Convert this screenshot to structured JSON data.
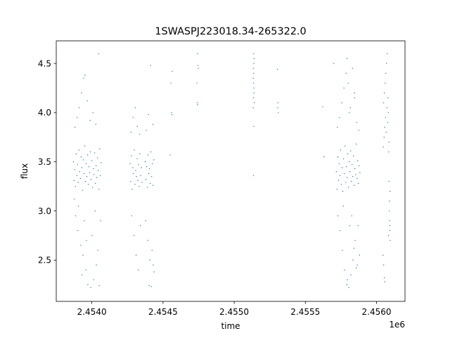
{
  "chart_data": {
    "type": "scatter",
    "title": "1SWASPJ223018.34-265322.0",
    "xlabel": "time",
    "ylabel": "flux",
    "x_offset_label": "1e6",
    "x_scale_factor": 1000000,
    "xlim": [
      2453750,
      2456200
    ],
    "ylim": [
      2.08,
      4.73
    ],
    "xticks": [
      2454000,
      2454500,
      2455000,
      2455500,
      2456000
    ],
    "xtick_labels": [
      "2.4540",
      "2.4545",
      "2.4550",
      "2.4555",
      "2.4560"
    ],
    "yticks": [
      2.5,
      3.0,
      3.5,
      4.0,
      4.5
    ],
    "ytick_labels": [
      "2.5",
      "3.0",
      "3.5",
      "4.0",
      "4.5"
    ],
    "grid": false,
    "marker_color": "#1f77b4",
    "series": [
      {
        "points": [
          [
            2453871,
            3.5
          ],
          [
            2453875,
            3.31
          ],
          [
            2453880,
            3.42
          ],
          [
            2453885,
            3.25
          ],
          [
            2453890,
            3.58
          ],
          [
            2453895,
            3.36
          ],
          [
            2453900,
            3.47
          ],
          [
            2453905,
            3.29
          ],
          [
            2453910,
            3.62
          ],
          [
            2453915,
            3.4
          ],
          [
            2453920,
            3.33
          ],
          [
            2453925,
            3.55
          ],
          [
            2453930,
            3.44
          ],
          [
            2453935,
            3.21
          ],
          [
            2453940,
            3.52
          ],
          [
            2453945,
            3.38
          ],
          [
            2453950,
            3.66
          ],
          [
            2453955,
            3.3
          ],
          [
            2453960,
            3.48
          ],
          [
            2453965,
            3.35
          ],
          [
            2453970,
            3.57
          ],
          [
            2453975,
            3.27
          ],
          [
            2453980,
            3.45
          ],
          [
            2453985,
            3.39
          ],
          [
            2453990,
            3.6
          ],
          [
            2453995,
            3.32
          ],
          [
            2454000,
            3.51
          ],
          [
            2454005,
            3.24
          ],
          [
            2454010,
            3.43
          ],
          [
            2454015,
            3.37
          ],
          [
            2454020,
            3.59
          ],
          [
            2454025,
            3.28
          ],
          [
            2454030,
            3.46
          ],
          [
            2454035,
            3.34
          ],
          [
            2454040,
            3.54
          ],
          [
            2454045,
            3.41
          ],
          [
            2454050,
            3.22
          ],
          [
            2454055,
            3.63
          ],
          [
            2454060,
            3.36
          ],
          [
            2454065,
            3.49
          ],
          [
            2453882,
            3.85
          ],
          [
            2453897,
            3.95
          ],
          [
            2453912,
            4.05
          ],
          [
            2453928,
            4.2
          ],
          [
            2453943,
            4.35
          ],
          [
            2453952,
            4.38
          ],
          [
            2453968,
            4.12
          ],
          [
            2453988,
            3.92
          ],
          [
            2454008,
            4.0
          ],
          [
            2454028,
            3.88
          ],
          [
            2454048,
            4.6
          ],
          [
            2453886,
            2.95
          ],
          [
            2453902,
            2.8
          ],
          [
            2453922,
            2.65
          ],
          [
            2453938,
            2.55
          ],
          [
            2453958,
            2.4
          ],
          [
            2453972,
            2.25
          ],
          [
            2453992,
            2.22
          ],
          [
            2454012,
            2.3
          ],
          [
            2454032,
            2.45
          ],
          [
            2454042,
            2.6
          ],
          [
            2453906,
            3.05
          ],
          [
            2453962,
            2.7
          ],
          [
            2454022,
            3.0
          ],
          [
            2454062,
            2.9
          ],
          [
            2453930,
            2.35
          ],
          [
            2454052,
            2.24
          ],
          [
            2453947,
            2.9
          ],
          [
            2454002,
            2.75
          ],
          [
            2453876,
            3.12
          ],
          [
            2454268,
            3.48
          ],
          [
            2454273,
            3.3
          ],
          [
            2454278,
            3.56
          ],
          [
            2454283,
            3.22
          ],
          [
            2454288,
            3.44
          ],
          [
            2454293,
            3.38
          ],
          [
            2454298,
            3.62
          ],
          [
            2454303,
            3.27
          ],
          [
            2454308,
            3.41
          ],
          [
            2454313,
            3.35
          ],
          [
            2454318,
            3.53
          ],
          [
            2454323,
            3.31
          ],
          [
            2454328,
            3.47
          ],
          [
            2454333,
            3.25
          ],
          [
            2454338,
            3.58
          ],
          [
            2454343,
            3.36
          ],
          [
            2454348,
            3.44
          ],
          [
            2454353,
            3.29
          ],
          [
            2454375,
            3.5
          ],
          [
            2454380,
            3.32
          ],
          [
            2454385,
            3.45
          ],
          [
            2454390,
            3.24
          ],
          [
            2454395,
            3.57
          ],
          [
            2454400,
            3.38
          ],
          [
            2454405,
            3.43
          ],
          [
            2454410,
            3.28
          ],
          [
            2454415,
            3.6
          ],
          [
            2454420,
            3.35
          ],
          [
            2454425,
            3.48
          ],
          [
            2454430,
            3.26
          ],
          [
            2454435,
            3.52
          ],
          [
            2454275,
            3.8
          ],
          [
            2454290,
            3.95
          ],
          [
            2454305,
            4.05
          ],
          [
            2454320,
            3.86
          ],
          [
            2454336,
            3.78
          ],
          [
            2454383,
            3.82
          ],
          [
            2454398,
            3.98
          ],
          [
            2454413,
            4.48
          ],
          [
            2454428,
            3.88
          ],
          [
            2454280,
            2.95
          ],
          [
            2454296,
            2.75
          ],
          [
            2454311,
            2.55
          ],
          [
            2454326,
            2.4
          ],
          [
            2454341,
            2.85
          ],
          [
            2454378,
            2.9
          ],
          [
            2454393,
            2.7
          ],
          [
            2454408,
            2.5
          ],
          [
            2454418,
            2.23
          ],
          [
            2454431,
            2.45
          ],
          [
            2454403,
            2.24
          ],
          [
            2454423,
            2.6
          ],
          [
            2454437,
            2.38
          ],
          [
            2454550,
            3.57
          ],
          [
            2454560,
            4.0
          ],
          [
            2454563,
            3.98
          ],
          [
            2454555,
            4.3
          ],
          [
            2454565,
            4.42
          ],
          [
            2454742,
            4.6
          ],
          [
            2454745,
            4.48
          ],
          [
            2454748,
            4.45
          ],
          [
            2454740,
            4.1
          ],
          [
            2454743,
            4.08
          ],
          [
            2454738,
            4.3
          ],
          [
            2455134,
            4.05
          ],
          [
            2455135,
            4.15
          ],
          [
            2455136,
            4.3
          ],
          [
            2455137,
            4.4
          ],
          [
            2455138,
            4.5
          ],
          [
            2455139,
            4.25
          ],
          [
            2455140,
            4.55
          ],
          [
            2455134,
            4.35
          ],
          [
            2455137,
            4.6
          ],
          [
            2455138,
            3.86
          ],
          [
            2455136,
            3.36
          ],
          [
            2455135,
            4.45
          ],
          [
            2455139,
            4.2
          ],
          [
            2455141,
            4.1
          ],
          [
            2455304,
            4.44
          ],
          [
            2455308,
            4.1
          ],
          [
            2455310,
            4.0
          ],
          [
            2455306,
            4.05
          ],
          [
            2455700,
            4.5
          ],
          [
            2455630,
            3.55
          ],
          [
            2455622,
            4.06
          ],
          [
            2455718,
            3.4
          ],
          [
            2455723,
            3.22
          ],
          [
            2455728,
            3.55
          ],
          [
            2455733,
            3.31
          ],
          [
            2455738,
            3.48
          ],
          [
            2455743,
            3.36
          ],
          [
            2455748,
            3.62
          ],
          [
            2455753,
            3.27
          ],
          [
            2455758,
            3.44
          ],
          [
            2455763,
            3.2
          ],
          [
            2455768,
            3.53
          ],
          [
            2455773,
            3.38
          ],
          [
            2455778,
            3.66
          ],
          [
            2455783,
            3.29
          ],
          [
            2455788,
            3.45
          ],
          [
            2455793,
            3.34
          ],
          [
            2455798,
            3.58
          ],
          [
            2455803,
            3.24
          ],
          [
            2455808,
            3.5
          ],
          [
            2455813,
            3.4
          ],
          [
            2455818,
            3.61
          ],
          [
            2455823,
            3.3
          ],
          [
            2455828,
            3.47
          ],
          [
            2455833,
            3.35
          ],
          [
            2455838,
            3.56
          ],
          [
            2455843,
            3.26
          ],
          [
            2455848,
            3.43
          ],
          [
            2455853,
            3.37
          ],
          [
            2455858,
            3.68
          ],
          [
            2455863,
            3.33
          ],
          [
            2455868,
            3.51
          ],
          [
            2455873,
            3.28
          ],
          [
            2455878,
            3.46
          ],
          [
            2455883,
            3.39
          ],
          [
            2455725,
            3.85
          ],
          [
            2455740,
            3.95
          ],
          [
            2455756,
            4.1
          ],
          [
            2455771,
            4.25
          ],
          [
            2455786,
            4.4
          ],
          [
            2455801,
            4.3
          ],
          [
            2455816,
            4.05
          ],
          [
            2455831,
            4.45
          ],
          [
            2455846,
            4.15
          ],
          [
            2455861,
            3.9
          ],
          [
            2455876,
            3.82
          ],
          [
            2455792,
            4.55
          ],
          [
            2455808,
            4.0
          ],
          [
            2455845,
            4.2
          ],
          [
            2455728,
            2.95
          ],
          [
            2455744,
            2.8
          ],
          [
            2455760,
            2.6
          ],
          [
            2455775,
            2.4
          ],
          [
            2455790,
            2.25
          ],
          [
            2455805,
            2.22
          ],
          [
            2455820,
            2.35
          ],
          [
            2455835,
            2.5
          ],
          [
            2455850,
            2.7
          ],
          [
            2455865,
            2.45
          ],
          [
            2455880,
            2.55
          ],
          [
            2455795,
            2.3
          ],
          [
            2455812,
            2.85
          ],
          [
            2455842,
            2.62
          ],
          [
            2455870,
            2.85
          ],
          [
            2455766,
            3.05
          ],
          [
            2455826,
            2.95
          ],
          [
            2455857,
            2.42
          ],
          [
            2456048,
            3.65
          ],
          [
            2456053,
            3.75
          ],
          [
            2456058,
            3.85
          ],
          [
            2456063,
            3.95
          ],
          [
            2456068,
            3.8
          ],
          [
            2456073,
            4.05
          ],
          [
            2456078,
            3.9
          ],
          [
            2456083,
            4.0
          ],
          [
            2456088,
            3.7
          ],
          [
            2456050,
            4.1
          ],
          [
            2456055,
            4.2
          ],
          [
            2456060,
            4.3
          ],
          [
            2456065,
            4.4
          ],
          [
            2456070,
            4.5
          ],
          [
            2456075,
            4.6
          ],
          [
            2456080,
            4.15
          ],
          [
            2456085,
            3.6
          ],
          [
            2456090,
            3.0
          ],
          [
            2456092,
            2.9
          ],
          [
            2456094,
            2.8
          ],
          [
            2456096,
            2.7
          ],
          [
            2456088,
            3.3
          ],
          [
            2456091,
            3.1
          ],
          [
            2456093,
            2.85
          ],
          [
            2456045,
            2.55
          ],
          [
            2456050,
            2.45
          ],
          [
            2456055,
            2.32
          ],
          [
            2456058,
            2.28
          ],
          [
            2456085,
            2.75
          ],
          [
            2456095,
            3.2
          ]
        ]
      }
    ]
  }
}
